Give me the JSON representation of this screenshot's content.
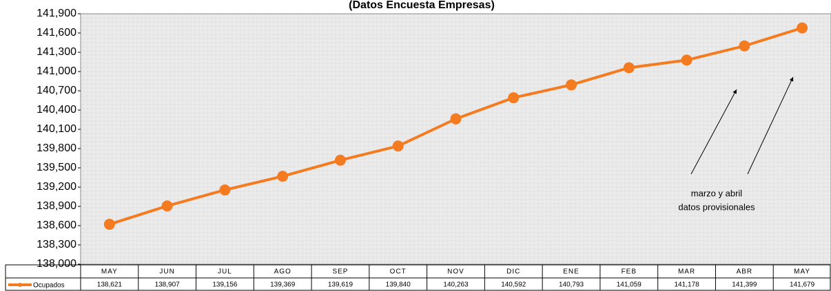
{
  "chart_data": {
    "type": "line",
    "title": "(Datos Encuesta Empresas)",
    "categories": [
      "MAY",
      "JUN",
      "JUL",
      "AGO",
      "SEP",
      "OCT",
      "NOV",
      "DIC",
      "ENE",
      "FEB",
      "MAR",
      "ABR",
      "MAY"
    ],
    "series": [
      {
        "name": "Ocupados",
        "color": "#f47b20",
        "values": [
          138621,
          138907,
          139156,
          139369,
          139619,
          139840,
          140263,
          140592,
          140793,
          141059,
          141178,
          141399,
          141679
        ],
        "value_labels": [
          "138,621",
          "138,907",
          "139,156",
          "139,369",
          "139,619",
          "139,840",
          "140,263",
          "140,592",
          "140,793",
          "141,059",
          "141,178",
          "141,399",
          "141,679"
        ]
      }
    ],
    "ylim": [
      138000,
      141900
    ],
    "yticks": [
      {
        "value": 138000,
        "label": "138,000"
      },
      {
        "value": 138300,
        "label": "138,300"
      },
      {
        "value": 138600,
        "label": "138,600"
      },
      {
        "value": 138900,
        "label": "138,900"
      },
      {
        "value": 139200,
        "label": "139,200"
      },
      {
        "value": 139500,
        "label": "139,500"
      },
      {
        "value": 139800,
        "label": "139,800"
      },
      {
        "value": 140100,
        "label": "140,100"
      },
      {
        "value": 140400,
        "label": "140,400"
      },
      {
        "value": 140700,
        "label": "140,700"
      },
      {
        "value": 141000,
        "label": "141,000"
      },
      {
        "value": 141300,
        "label": "141,300"
      },
      {
        "value": 141600,
        "label": "141,600"
      },
      {
        "value": 141900,
        "label": "141,900"
      }
    ],
    "annotations": [
      "marzo y abril",
      "datos  provisionales"
    ],
    "grid": false
  }
}
